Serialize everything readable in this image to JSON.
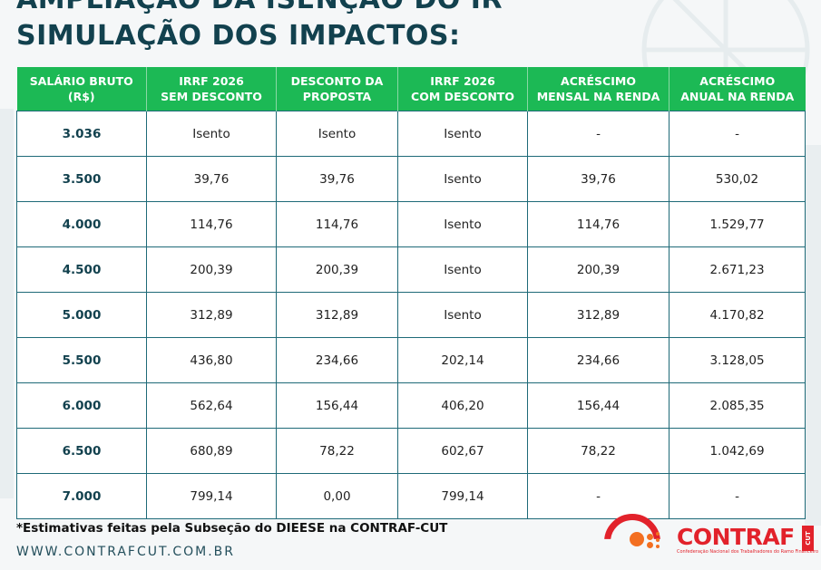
{
  "header": {
    "title_line1": "AMPLIAÇÃO DA ISENÇÃO DO IR",
    "title_line2": "SIMULAÇÃO DOS IMPACTOS:"
  },
  "table": {
    "columns": [
      [
        "SALÁRIO BRUTO",
        "(R$)"
      ],
      [
        "IRRF 2026",
        "SEM DESCONTO"
      ],
      [
        "DESCONTO DA",
        "PROPOSTA"
      ],
      [
        "IRRF 2026",
        "COM DESCONTO"
      ],
      [
        "ACRÉSCIMO",
        "MENSAL NA RENDA"
      ],
      [
        "ACRÉSCIMO",
        "ANUAL NA RENDA"
      ]
    ],
    "rows": [
      [
        "3.036",
        "Isento",
        "Isento",
        "Isento",
        "-",
        "-"
      ],
      [
        "3.500",
        "39,76",
        "39,76",
        "Isento",
        "39,76",
        "530,02"
      ],
      [
        "4.000",
        "114,76",
        "114,76",
        "Isento",
        "114,76",
        "1.529,77"
      ],
      [
        "4.500",
        "200,39",
        "200,39",
        "Isento",
        "200,39",
        "2.671,23"
      ],
      [
        "5.000",
        "312,89",
        "312,89",
        "Isento",
        "312,89",
        "4.170,82"
      ],
      [
        "5.500",
        "436,80",
        "234,66",
        "202,14",
        "234,66",
        "3.128,05"
      ],
      [
        "6.000",
        "562,64",
        "156,44",
        "406,20",
        "156,44",
        "2.085,35"
      ],
      [
        "6.500",
        "680,89",
        "78,22",
        "602,67",
        "78,22",
        "1.042,69"
      ],
      [
        "7.000",
        "799,14",
        "0,00",
        "799,14",
        "-",
        "-"
      ]
    ]
  },
  "footer": {
    "note": "*Estimativas feitas pela Subseção do DIEESE na CONTRAF-CUT",
    "website": "WWW.CONTRAFCUT.COM.BR"
  },
  "logo": {
    "name": "CONTRAF",
    "badge": "CUT",
    "subtitle": "Confederação Nacional dos Trabalhadores do Ramo Financeiro"
  },
  "colors": {
    "header_green": "#1cb955",
    "title_teal": "#12414e",
    "border_teal": "#1e6a78",
    "logo_red": "#e2222b",
    "logo_orange": "#f36f21"
  },
  "icons": [
    "contraf-logo-icon"
  ]
}
